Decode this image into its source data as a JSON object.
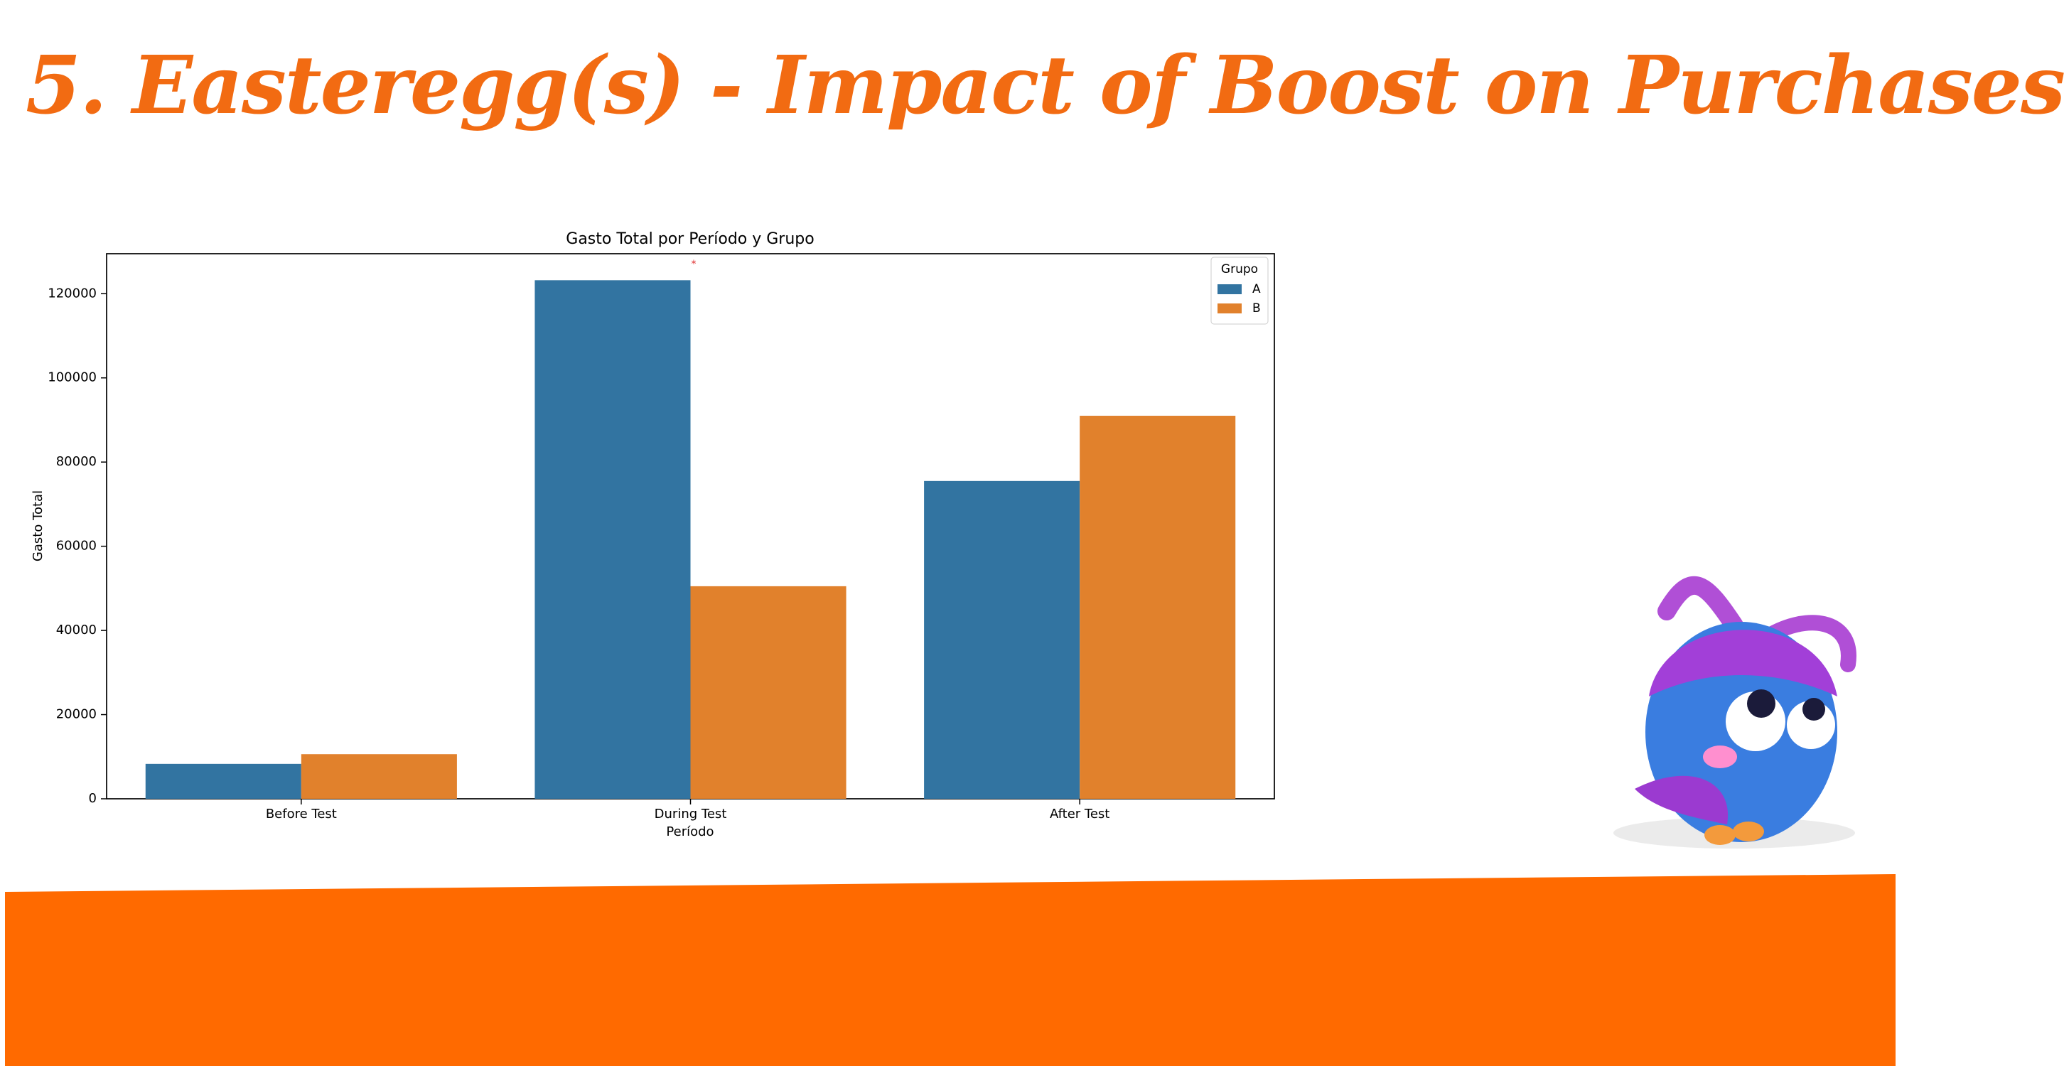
{
  "slide_title": "5. Easteregg(s) - Impact of Boost on Purchases",
  "chart_data": {
    "type": "bar",
    "title": "Gasto Total por Período y Grupo",
    "x_label": "Período",
    "y_label": "Gasto Total",
    "categories": [
      "Before Test",
      "During Test",
      "After Test"
    ],
    "series": [
      {
        "name": "A",
        "color": "#3274a1",
        "values": [
          8300,
          123200,
          75500
        ]
      },
      {
        "name": "B",
        "color": "#e1812c",
        "values": [
          10600,
          50500,
          91000
        ]
      }
    ],
    "ylim": [
      0,
      129500
    ],
    "yticks": [
      0,
      20000,
      40000,
      60000,
      80000,
      100000,
      120000
    ],
    "legend_title": "Grupo",
    "legend": "upper right",
    "annotation": "*",
    "grid": false
  }
}
